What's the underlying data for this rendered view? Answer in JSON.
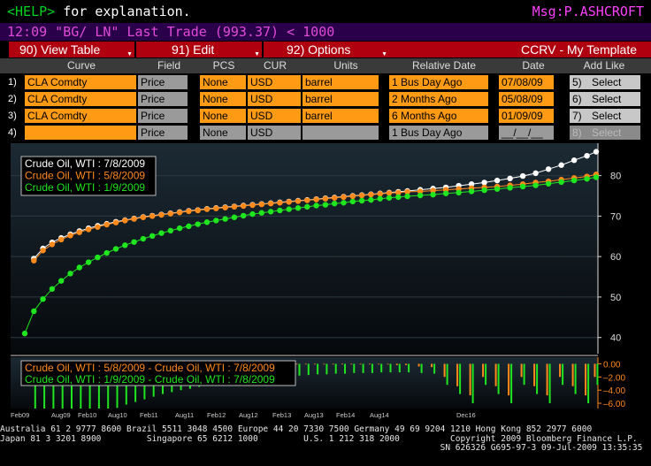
{
  "topline": {
    "help": "<HELP>",
    "rest": " for explanation."
  },
  "message": "Msg:P.ASHCROFT",
  "ticker_line": "12:09 \"BG/ LN\" Last Trade (993.37) < 1000",
  "menu": {
    "view_table": "90)  View Table",
    "edit": "91)  Edit",
    "options": "92)  Options",
    "template": "CCRV - My Template"
  },
  "columns": [
    "Curve",
    "Field",
    "PCS",
    "CUR",
    "Units",
    "Relative Date",
    "Date",
    "Add Like"
  ],
  "rows": [
    {
      "num": "1)",
      "curve": "CLA Comdty",
      "field": "Price",
      "pcs": "None",
      "cur": "USD",
      "units": "barrel",
      "rel": "1 Bus Day Ago",
      "date": "07/08/09",
      "sel_num": "5)",
      "sel": "Select",
      "active": true
    },
    {
      "num": "2)",
      "curve": "CLA Comdty",
      "field": "Price",
      "pcs": "None",
      "cur": "USD",
      "units": "barrel",
      "rel": "2 Months Ago",
      "date": "05/08/09",
      "sel_num": "6)",
      "sel": "Select",
      "active": true
    },
    {
      "num": "3)",
      "curve": "CLA Comdty",
      "field": "Price",
      "pcs": "None",
      "cur": "USD",
      "units": "barrel",
      "rel": "6 Months Ago",
      "date": "01/09/09",
      "sel_num": "7)",
      "sel": "Select",
      "active": true
    },
    {
      "num": "4)",
      "curve": "",
      "field": "Price",
      "pcs": "None",
      "cur": "USD",
      "units": "",
      "rel": "1 Bus Day Ago",
      "date": "__/__/__",
      "sel_num": "8)",
      "sel": "Select",
      "active": false
    }
  ],
  "chart_data": {
    "type": "line",
    "main": {
      "ylim": [
        36,
        88
      ],
      "yticks": [
        40,
        50,
        60,
        70,
        80
      ],
      "series": [
        {
          "name": "Crude Oil, WTI : 7/8/2009",
          "color": "#ffffff",
          "values": [
            null,
            59.5,
            62.0,
            63.5,
            64.6,
            65.5,
            66.3,
            67.0,
            67.6,
            68.1,
            68.6,
            69.0,
            69.4,
            69.8,
            70.1,
            70.4,
            70.7,
            71.0,
            71.3,
            71.5,
            71.8,
            72.0,
            72.2,
            72.4,
            72.6,
            72.8,
            73.0,
            73.2,
            73.4,
            73.6,
            73.8,
            74.0,
            74.2,
            74.4,
            74.6,
            74.8,
            75.0,
            75.2,
            75.4,
            75.6,
            75.8,
            76.0,
            76.2,
            76.5,
            76.8,
            77.1,
            77.5,
            77.9,
            78.3,
            78.8,
            79.3,
            79.9,
            80.6,
            81.6,
            82.6,
            83.8,
            84.9,
            85.9
          ]
        },
        {
          "name": "Crude Oil, WTI : 5/8/2009",
          "color": "#ff8a1c",
          "values": [
            null,
            59.0,
            61.5,
            63.0,
            64.2,
            65.2,
            66.0,
            66.7,
            67.3,
            67.9,
            68.4,
            68.9,
            69.3,
            69.7,
            70.0,
            70.3,
            70.6,
            70.9,
            71.2,
            71.4,
            71.7,
            71.9,
            72.1,
            72.3,
            72.5,
            72.7,
            72.9,
            73.1,
            73.3,
            73.5,
            73.7,
            73.9,
            74.1,
            74.3,
            74.5,
            74.7,
            74.9,
            75.1,
            75.3,
            75.5,
            75.7,
            75.8,
            76.0,
            76.1,
            76.3,
            76.5,
            76.7,
            76.9,
            77.1,
            77.3,
            77.6,
            77.9,
            78.3,
            78.6,
            79.0,
            79.4,
            79.8,
            80.3
          ]
        },
        {
          "name": "Crude Oil, WTI : 1/9/2009",
          "color": "#1fe61f",
          "values": [
            41.0,
            46.5,
            49.5,
            52.0,
            54.0,
            55.8,
            57.3,
            58.6,
            59.8,
            60.9,
            61.9,
            62.8,
            63.6,
            64.4,
            65.1,
            65.8,
            66.4,
            67.0,
            67.5,
            68.0,
            68.5,
            68.9,
            69.3,
            69.7,
            70.1,
            70.5,
            70.8,
            71.1,
            71.4,
            71.7,
            72.0,
            72.3,
            72.6,
            72.8,
            73.1,
            73.3,
            73.6,
            73.8,
            74.0,
            74.3,
            74.5,
            74.7,
            74.9,
            75.1,
            75.3,
            75.6,
            75.8,
            76.1,
            76.4,
            76.7,
            77.0,
            77.3,
            77.6,
            78.0,
            78.4,
            78.8,
            79.2,
            79.6
          ]
        }
      ]
    },
    "diff": {
      "ylim": [
        -6.8,
        1.0
      ],
      "yticks": [
        "0.00",
        "-2.00",
        "-4.00",
        "-6.00"
      ],
      "series": [
        {
          "name": "Crude Oil, WTI : 5/8/2009 - Crude Oil, WTI : 7/8/2009",
          "color": "#ff8a1c"
        },
        {
          "name": "Crude Oil, WTI : 1/9/2009 - Crude Oil, WTI : 7/8/2009",
          "color": "#1fe61f"
        }
      ]
    },
    "x_labels": [
      "Feb09",
      "Aug09",
      "Feb10",
      "Aug10",
      "Feb11",
      "Aug11",
      "Feb12",
      "Aug12",
      "Feb13",
      "Aug13",
      "Feb14",
      "Aug14",
      "Dec16"
    ]
  },
  "footer": {
    "line1": "Australia 61 2 9777 8600 Brazil 5511 3048 4500 Europe 44 20 7330 7500 Germany 49 69 9204 1210 Hong Kong 852 2977 6000",
    "line2": "Japan 81 3 3201 8900         Singapore 65 6212 1000         U.S. 1 212 318 2000          Copyright 2009 Bloomberg Finance L.P.",
    "line3": "                                                                                       SN 626326 G695-97-3 09-Jul-2009 13:35:35"
  }
}
